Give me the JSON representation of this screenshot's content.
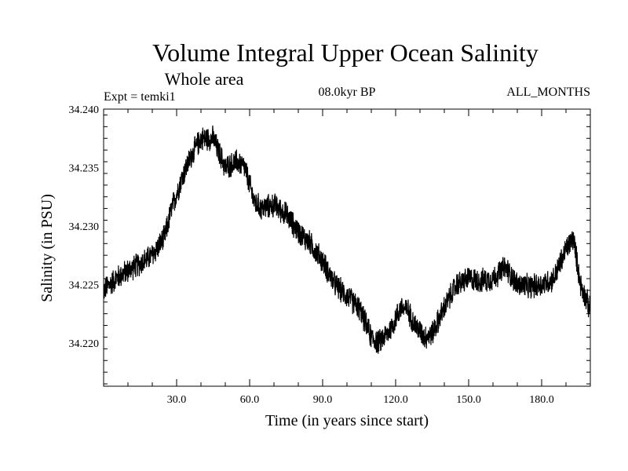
{
  "chart_data": {
    "type": "line",
    "title": "Volume Integral Upper Ocean Salinity",
    "subtitle": "Whole area",
    "experiment": "Expt = temki1",
    "period": "08.0kyr BP",
    "season": "ALL_MONTHS",
    "xlabel": "Time (in years since start)",
    "ylabel": "Salinity (in PSU)",
    "xlim": [
      0,
      200
    ],
    "ylim": [
      34.2163,
      34.24
    ],
    "x_ticks": [
      30,
      60,
      90,
      120,
      150,
      180
    ],
    "x_tick_labels": [
      "30.0",
      "60.0",
      "90.0",
      "120.0",
      "150.0",
      "180.0"
    ],
    "y_ticks": [
      34.22,
      34.225,
      34.23,
      34.235,
      34.24
    ],
    "y_tick_labels": [
      "34.220",
      "34.225",
      "34.230",
      "34.235",
      "34.240"
    ],
    "noise_amplitude": 0.0012,
    "samples_per_year": 12,
    "series": [
      {
        "name": "salinity",
        "color": "#000000",
        "trend_x": [
          0,
          5,
          10,
          15,
          20,
          25,
          28,
          32,
          36,
          40,
          45,
          50,
          55,
          58,
          62,
          65,
          70,
          75,
          80,
          85,
          90,
          95,
          100,
          105,
          110,
          113,
          118,
          122,
          125,
          128,
          132,
          135,
          140,
          145,
          150,
          155,
          160,
          165,
          170,
          175,
          180,
          185,
          190,
          193,
          196,
          200
        ],
        "trend_y": [
          34.2245,
          34.2255,
          34.2262,
          34.2268,
          34.2275,
          34.229,
          34.2315,
          34.234,
          34.236,
          34.2375,
          34.2375,
          34.235,
          34.2355,
          34.235,
          34.232,
          34.2315,
          34.2318,
          34.231,
          34.2295,
          34.2285,
          34.227,
          34.225,
          34.224,
          34.223,
          34.2205,
          34.22,
          34.2212,
          34.223,
          34.2228,
          34.2215,
          34.2205,
          34.2208,
          34.223,
          34.225,
          34.2255,
          34.2253,
          34.2255,
          34.2265,
          34.225,
          34.2248,
          34.225,
          34.2255,
          34.228,
          34.229,
          34.225,
          34.2228
        ]
      }
    ]
  }
}
